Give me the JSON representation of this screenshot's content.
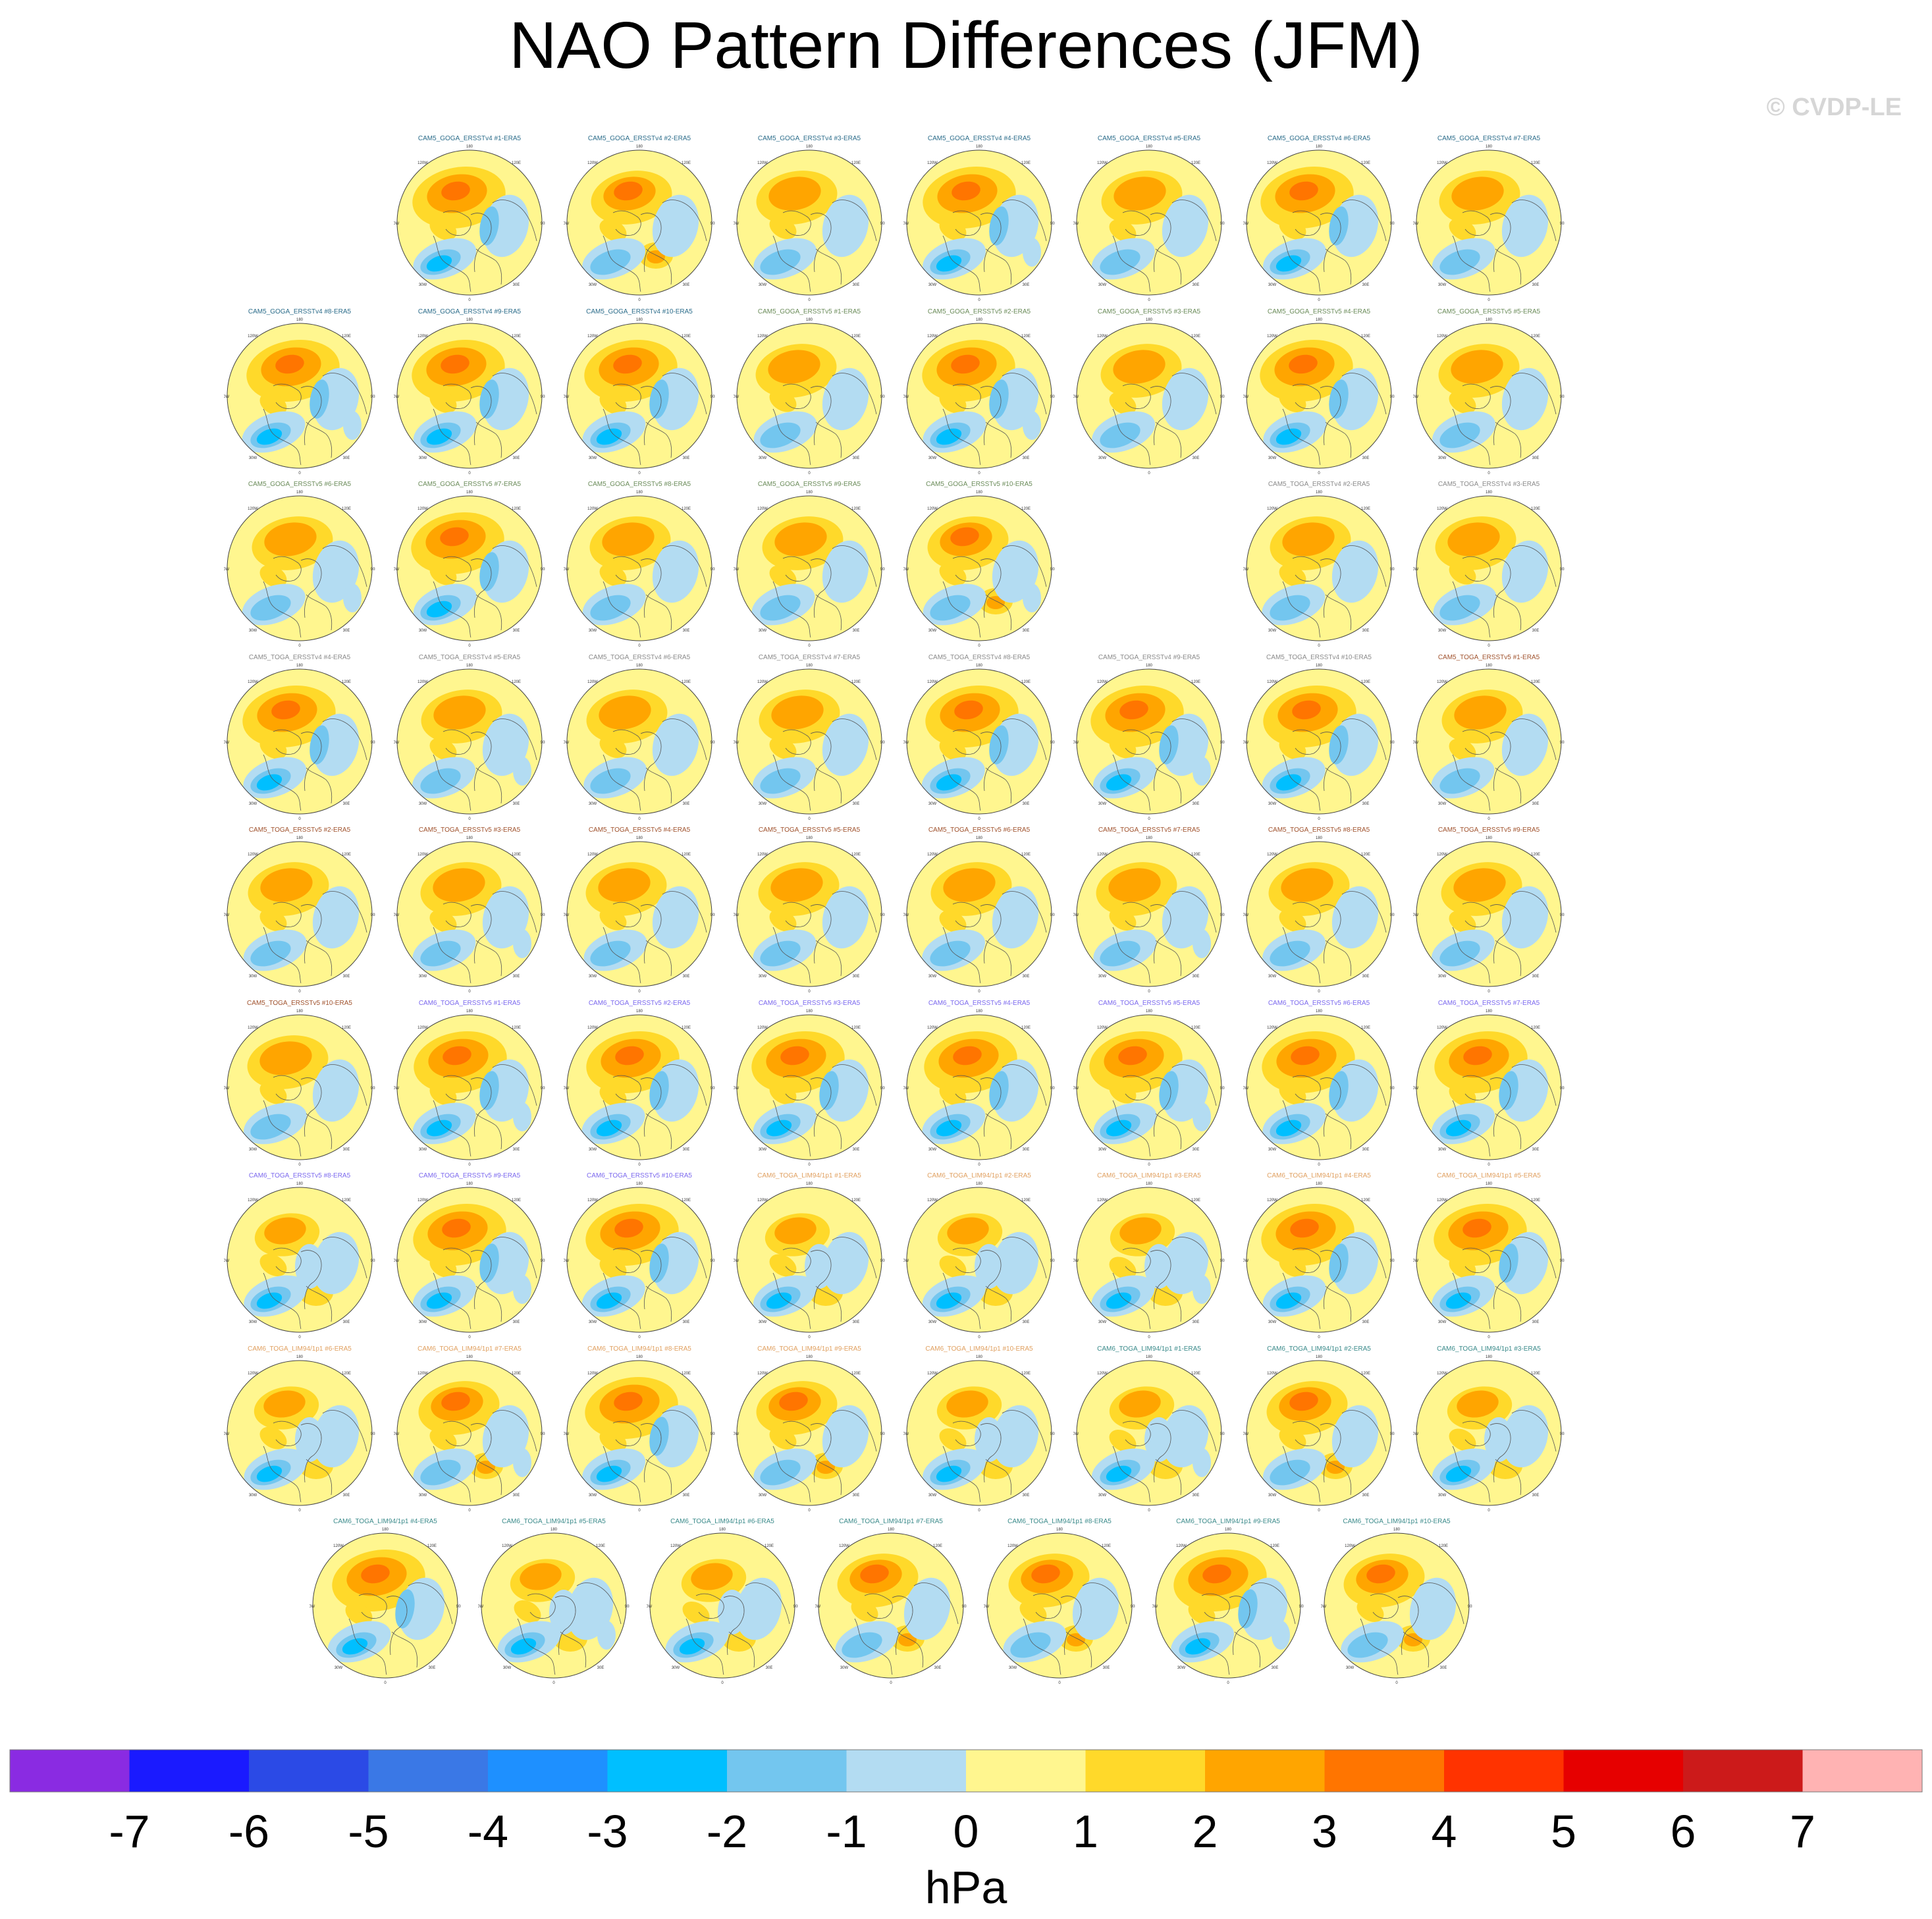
{
  "title": "NAO Pattern Differences (JFM)",
  "watermark": "© CVDP-LE",
  "chart_data": {
    "type": "polar-contour-map-grid",
    "projection": "north-polar-stereographic",
    "variable": "NAO pattern difference (model minus ERA5)",
    "units": "hPa",
    "colorbar": {
      "label": "hPa",
      "levels": [
        "-7",
        "-6",
        "-5",
        "-4",
        "-3",
        "-2",
        "-1",
        "0",
        "1",
        "2",
        "3",
        "4",
        "5",
        "6",
        "7"
      ],
      "colors": [
        "#8a2be2",
        "#1a1aff",
        "#2b4ae6",
        "#3a78e6",
        "#1e90ff",
        "#00bfff",
        "#73c6ef",
        "#b3dcf2",
        "#fff68f",
        "#ffd92a",
        "#ffa500",
        "#ff7500",
        "#ff3300",
        "#e60000",
        "#cc1a1a",
        "#ffb3b3"
      ]
    },
    "map_labels": {
      "top": "180",
      "bottom": "0",
      "upper_left": "120W",
      "upper_right": "120E",
      "left": "90W",
      "right": "90E",
      "lower_left": "30W",
      "lower_right": "30E"
    },
    "rows": [
      {
        "offset": 1,
        "panels": [
          {
            "title": "CAM5_GOGA_ERSSTv4 #1-ERA5",
            "grp": "goga4",
            "pattern": 1
          },
          {
            "title": "CAM5_GOGA_ERSSTv4 #2-ERA5",
            "grp": "goga4",
            "pattern": 2
          },
          {
            "title": "CAM5_GOGA_ERSSTv4 #3-ERA5",
            "grp": "goga4",
            "pattern": 0
          },
          {
            "title": "CAM5_GOGA_ERSSTv4 #4-ERA5",
            "grp": "goga4",
            "pattern": 1
          },
          {
            "title": "CAM5_GOGA_ERSSTv4 #5-ERA5",
            "grp": "goga4",
            "pattern": 0
          },
          {
            "title": "CAM5_GOGA_ERSSTv4 #6-ERA5",
            "grp": "goga4",
            "pattern": 1
          },
          {
            "title": "CAM5_GOGA_ERSSTv4 #7-ERA5",
            "grp": "goga4",
            "pattern": 0
          }
        ]
      },
      {
        "offset": 0,
        "panels": [
          {
            "title": "CAM5_GOGA_ERSSTv4 #8-ERA5",
            "grp": "goga4",
            "pattern": 1
          },
          {
            "title": "CAM5_GOGA_ERSSTv4 #9-ERA5",
            "grp": "goga4",
            "pattern": 1
          },
          {
            "title": "CAM5_GOGA_ERSSTv4 #10-ERA5",
            "grp": "goga4",
            "pattern": 1
          },
          {
            "title": "CAM5_GOGA_ERSSTv5 #1-ERA5",
            "grp": "goga5",
            "pattern": 0
          },
          {
            "title": "CAM5_GOGA_ERSSTv5 #2-ERA5",
            "grp": "goga5",
            "pattern": 1
          },
          {
            "title": "CAM5_GOGA_ERSSTv5 #3-ERA5",
            "grp": "goga5",
            "pattern": 0
          },
          {
            "title": "CAM5_GOGA_ERSSTv5 #4-ERA5",
            "grp": "goga5",
            "pattern": 1
          },
          {
            "title": "CAM5_GOGA_ERSSTv5 #5-ERA5",
            "grp": "goga5",
            "pattern": 0
          }
        ]
      },
      {
        "offset": 0,
        "panels": [
          {
            "title": "CAM5_GOGA_ERSSTv5 #6-ERA5",
            "grp": "goga5",
            "pattern": 0
          },
          {
            "title": "CAM5_GOGA_ERSSTv5 #7-ERA5",
            "grp": "goga5",
            "pattern": 1
          },
          {
            "title": "CAM5_GOGA_ERSSTv5 #8-ERA5",
            "grp": "goga5",
            "pattern": 0
          },
          {
            "title": "CAM5_GOGA_ERSSTv5 #9-ERA5",
            "grp": "goga5",
            "pattern": 0
          },
          {
            "title": "CAM5_GOGA_ERSSTv5 #10-ERA5",
            "grp": "goga5",
            "pattern": 2
          },
          null,
          {
            "title": "CAM5_TOGA_ERSSTv4 #2-ERA5",
            "grp": "toga4",
            "pattern": 0
          },
          {
            "title": "CAM5_TOGA_ERSSTv4 #3-ERA5",
            "grp": "toga4",
            "pattern": 0
          }
        ]
      },
      {
        "offset": 0,
        "panels": [
          {
            "title": "CAM5_TOGA_ERSSTv4 #4-ERA5",
            "grp": "toga4",
            "pattern": 1
          },
          {
            "title": "CAM5_TOGA_ERSSTv4 #5-ERA5",
            "grp": "toga4",
            "pattern": 0
          },
          {
            "title": "CAM5_TOGA_ERSSTv4 #6-ERA5",
            "grp": "toga4",
            "pattern": 0
          },
          {
            "title": "CAM5_TOGA_ERSSTv4 #7-ERA5",
            "grp": "toga4",
            "pattern": 0
          },
          {
            "title": "CAM5_TOGA_ERSSTv4 #8-ERA5",
            "grp": "toga4",
            "pattern": 1
          },
          {
            "title": "CAM5_TOGA_ERSSTv4 #9-ERA5",
            "grp": "toga4",
            "pattern": 1
          },
          {
            "title": "CAM5_TOGA_ERSSTv4 #10-ERA5",
            "grp": "toga4",
            "pattern": 1
          },
          {
            "title": "CAM5_TOGA_ERSSTv5 #1-ERA5",
            "grp": "toga5",
            "pattern": 0
          }
        ]
      },
      {
        "offset": 0,
        "panels": [
          {
            "title": "CAM5_TOGA_ERSSTv5 #2-ERA5",
            "grp": "toga5",
            "pattern": 0
          },
          {
            "title": "CAM5_TOGA_ERSSTv5 #3-ERA5",
            "grp": "toga5",
            "pattern": 0
          },
          {
            "title": "CAM5_TOGA_ERSSTv5 #4-ERA5",
            "grp": "toga5",
            "pattern": 0
          },
          {
            "title": "CAM5_TOGA_ERSSTv5 #5-ERA5",
            "grp": "toga5",
            "pattern": 0
          },
          {
            "title": "CAM5_TOGA_ERSSTv5 #6-ERA5",
            "grp": "toga5",
            "pattern": 0
          },
          {
            "title": "CAM5_TOGA_ERSSTv5 #7-ERA5",
            "grp": "toga5",
            "pattern": 0
          },
          {
            "title": "CAM5_TOGA_ERSSTv5 #8-ERA5",
            "grp": "toga5",
            "pattern": 0
          },
          {
            "title": "CAM5_TOGA_ERSSTv5 #9-ERA5",
            "grp": "toga5",
            "pattern": 0
          }
        ]
      },
      {
        "offset": 0,
        "panels": [
          {
            "title": "CAM5_TOGA_ERSSTv5 #10-ERA5",
            "grp": "toga5",
            "pattern": 0
          },
          {
            "title": "CAM6_TOGA_ERSSTv5 #1-ERA5",
            "grp": "cam6v5",
            "pattern": 1
          },
          {
            "title": "CAM6_TOGA_ERSSTv5 #2-ERA5",
            "grp": "cam6v5",
            "pattern": 1
          },
          {
            "title": "CAM6_TOGA_ERSSTv5 #3-ERA5",
            "grp": "cam6v5",
            "pattern": 1
          },
          {
            "title": "CAM6_TOGA_ERSSTv5 #4-ERA5",
            "grp": "cam6v5",
            "pattern": 1
          },
          {
            "title": "CAM6_TOGA_ERSSTv5 #5-ERA5",
            "grp": "cam6v5",
            "pattern": 1
          },
          {
            "title": "CAM6_TOGA_ERSSTv5 #6-ERA5",
            "grp": "cam6v5",
            "pattern": 1
          },
          {
            "title": "CAM6_TOGA_ERSSTv5 #7-ERA5",
            "grp": "cam6v5",
            "pattern": 1
          }
        ]
      },
      {
        "offset": 0,
        "panels": [
          {
            "title": "CAM6_TOGA_ERSSTv5 #8-ERA5",
            "grp": "cam6v5",
            "pattern": 3
          },
          {
            "title": "CAM6_TOGA_ERSSTv5 #9-ERA5",
            "grp": "cam6v5",
            "pattern": 1
          },
          {
            "title": "CAM6_TOGA_ERSSTv5 #10-ERA5",
            "grp": "cam6v5",
            "pattern": 1
          },
          {
            "title": "CAM6_TOGA_LIM94/1p1 #1-ERA5",
            "grp": "limA",
            "pattern": 3
          },
          {
            "title": "CAM6_TOGA_LIM94/1p1 #2-ERA5",
            "grp": "limA",
            "pattern": 3
          },
          {
            "title": "CAM6_TOGA_LIM94/1p1 #3-ERA5",
            "grp": "limA",
            "pattern": 3
          },
          {
            "title": "CAM6_TOGA_LIM94/1p1 #4-ERA5",
            "grp": "limA",
            "pattern": 1
          },
          {
            "title": "CAM6_TOGA_LIM94/1p1 #5-ERA5",
            "grp": "limA",
            "pattern": 1
          }
        ]
      },
      {
        "offset": 0,
        "panels": [
          {
            "title": "CAM6_TOGA_LIM94/1p1 #6-ERA5",
            "grp": "limA",
            "pattern": 3
          },
          {
            "title": "CAM6_TOGA_LIM94/1p1 #7-ERA5",
            "grp": "limA",
            "pattern": 2
          },
          {
            "title": "CAM6_TOGA_LIM94/1p1 #8-ERA5",
            "grp": "limA",
            "pattern": 1
          },
          {
            "title": "CAM6_TOGA_LIM94/1p1 #9-ERA5",
            "grp": "limA",
            "pattern": 2
          },
          {
            "title": "CAM6_TOGA_LIM94/1p1 #10-ERA5",
            "grp": "limA",
            "pattern": 3
          },
          {
            "title": "CAM6_TOGA_LIM94/1p1 #1-ERA5",
            "grp": "limB",
            "pattern": 3
          },
          {
            "title": "CAM6_TOGA_LIM94/1p1 #2-ERA5",
            "grp": "limB",
            "pattern": 2
          },
          {
            "title": "CAM6_TOGA_LIM94/1p1 #3-ERA5",
            "grp": "limB",
            "pattern": 3
          }
        ]
      },
      {
        "offset": 0.5,
        "panels": [
          {
            "title": "CAM6_TOGA_LIM94/1p1 #4-ERA5",
            "grp": "limB",
            "pattern": 1
          },
          {
            "title": "CAM6_TOGA_LIM94/1p1 #5-ERA5",
            "grp": "limB",
            "pattern": 3
          },
          {
            "title": "CAM6_TOGA_LIM94/1p1 #6-ERA5",
            "grp": "limB",
            "pattern": 3
          },
          {
            "title": "CAM6_TOGA_LIM94/1p1 #7-ERA5",
            "grp": "limB",
            "pattern": 2
          },
          {
            "title": "CAM6_TOGA_LIM94/1p1 #8-ERA5",
            "grp": "limB",
            "pattern": 2
          },
          {
            "title": "CAM6_TOGA_LIM94/1p1 #9-ERA5",
            "grp": "limB",
            "pattern": 1
          },
          {
            "title": "CAM6_TOGA_LIM94/1p1 #10-ERA5",
            "grp": "limB",
            "pattern": 2
          }
        ]
      }
    ],
    "group_title_colors": {
      "goga4": "#2b6c8a",
      "goga5": "#6b8c5a",
      "toga4": "#8a8a8a",
      "toga5": "#a0522d",
      "cam6v5": "#7b68ee",
      "limA": "#e0a060",
      "limB": "#3a8a8a"
    }
  }
}
